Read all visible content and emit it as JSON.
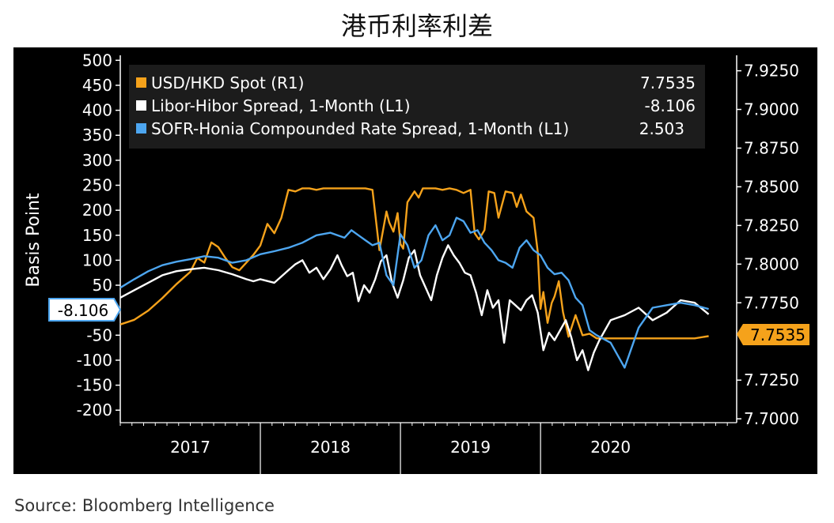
{
  "title": "港币利率利差",
  "source": "Source: Bloomberg Intelligence",
  "colors": {
    "background": "#000000",
    "usdhkd": "#f5a21b",
    "libor_hibor": "#ffffff",
    "sofr_honia": "#4da6f0",
    "legend_bg": "#1c1c1c"
  },
  "chart_data": {
    "type": "line",
    "title": "港币利率利差",
    "ylabel_left": "Basis Point",
    "left_axis": {
      "range": [
        -225,
        510
      ],
      "ticks": [
        500,
        450,
        400,
        350,
        300,
        250,
        200,
        150,
        100,
        50,
        -50,
        -100,
        -150,
        -200
      ],
      "tick_labels": [
        "500",
        "450",
        "400",
        "350",
        "300",
        "250",
        "200",
        "150",
        "100",
        "50",
        "-50",
        "-100",
        "-150",
        "-200"
      ]
    },
    "right_axis": {
      "range": [
        7.6975,
        7.935
      ],
      "ticks": [
        7.925,
        7.9,
        7.875,
        7.85,
        7.825,
        7.8,
        7.775,
        7.725,
        7.7
      ],
      "tick_labels": [
        "7.9250",
        "7.9000",
        "7.8750",
        "7.8500",
        "7.8250",
        "7.8000",
        "7.7750",
        "7.7250",
        "7.7000"
      ]
    },
    "x_axis": {
      "range": [
        2016.5,
        2020.9
      ],
      "year_labels": [
        "2017",
        "2018",
        "2019",
        "2020"
      ],
      "year_positions": [
        2017.0,
        2018.0,
        2019.0,
        2020.0
      ],
      "separators": [
        2017.5,
        2018.5,
        2019.5
      ]
    },
    "legend": {
      "position": "top-left",
      "entries": [
        {
          "name": "USD/HKD Spot (R1)",
          "value": "7.7535"
        },
        {
          "name": "Libor-Hibor Spread, 1-Month (L1)",
          "value": "-8.106"
        },
        {
          "name": "SOFR-Honia Compounded Rate Spread, 1-Month (L1)",
          "value": "2.503"
        }
      ]
    },
    "last_value_tags": {
      "left": "-8.106",
      "right": "7.7535"
    },
    "series": [
      {
        "name": "USD/HKD Spot (R1)",
        "axis": "right",
        "x": [
          2016.5,
          2016.6,
          2016.7,
          2016.8,
          2016.9,
          2017.0,
          2017.05,
          2017.1,
          2017.15,
          2017.2,
          2017.25,
          2017.3,
          2017.35,
          2017.4,
          2017.45,
          2017.5,
          2017.55,
          2017.6,
          2017.65,
          2017.7,
          2017.75,
          2017.8,
          2017.85,
          2017.9,
          2017.95,
          2018.0,
          2018.05,
          2018.1,
          2018.15,
          2018.2,
          2018.25,
          2018.3,
          2018.35,
          2018.4,
          2018.42,
          2018.45,
          2018.48,
          2018.5,
          2018.52,
          2018.55,
          2018.6,
          2018.63,
          2018.66,
          2018.7,
          2018.75,
          2018.8,
          2018.85,
          2018.9,
          2018.95,
          2019.0,
          2019.03,
          2019.06,
          2019.1,
          2019.13,
          2019.17,
          2019.2,
          2019.25,
          2019.3,
          2019.33,
          2019.36,
          2019.4,
          2019.45,
          2019.48,
          2019.5,
          2019.52,
          2019.55,
          2019.58,
          2019.6,
          2019.63,
          2019.66,
          2019.7,
          2019.75,
          2019.8,
          2019.85,
          2019.9,
          2020.0,
          2020.2,
          2020.4,
          2020.6,
          2020.7
        ],
        "values": [
          7.761,
          7.764,
          7.77,
          7.778,
          7.787,
          7.795,
          7.804,
          7.801,
          7.814,
          7.811,
          7.804,
          7.798,
          7.796,
          7.801,
          7.806,
          7.812,
          7.826,
          7.82,
          7.83,
          7.848,
          7.847,
          7.849,
          7.849,
          7.848,
          7.849,
          7.849,
          7.849,
          7.849,
          7.849,
          7.849,
          7.849,
          7.848,
          7.809,
          7.834,
          7.827,
          7.821,
          7.833,
          7.813,
          7.81,
          7.84,
          7.847,
          7.843,
          7.849,
          7.849,
          7.849,
          7.848,
          7.849,
          7.848,
          7.846,
          7.848,
          7.82,
          7.816,
          7.822,
          7.847,
          7.846,
          7.83,
          7.847,
          7.846,
          7.837,
          7.845,
          7.834,
          7.83,
          7.808,
          7.771,
          7.782,
          7.762,
          7.775,
          7.779,
          7.789,
          7.769,
          7.753,
          7.767,
          7.754,
          7.755,
          7.752,
          7.752,
          7.752,
          7.752,
          7.752,
          7.7535
        ]
      },
      {
        "name": "Libor-Hibor Spread, 1-Month (L1)",
        "axis": "left",
        "x": [
          2016.5,
          2016.6,
          2016.7,
          2016.8,
          2016.9,
          2017.0,
          2017.1,
          2017.2,
          2017.3,
          2017.4,
          2017.45,
          2017.5,
          2017.6,
          2017.7,
          2017.75,
          2017.8,
          2017.85,
          2017.9,
          2017.95,
          2018.0,
          2018.05,
          2018.08,
          2018.12,
          2018.16,
          2018.2,
          2018.24,
          2018.28,
          2018.32,
          2018.36,
          2018.4,
          2018.44,
          2018.48,
          2018.52,
          2018.56,
          2018.6,
          2018.64,
          2018.68,
          2018.72,
          2018.76,
          2018.8,
          2018.84,
          2018.88,
          2018.92,
          2018.96,
          2019.0,
          2019.04,
          2019.08,
          2019.12,
          2019.16,
          2019.2,
          2019.24,
          2019.28,
          2019.32,
          2019.36,
          2019.4,
          2019.44,
          2019.48,
          2019.52,
          2019.56,
          2019.6,
          2019.64,
          2019.68,
          2019.72,
          2019.76,
          2019.8,
          2019.84,
          2019.88,
          2019.92,
          2019.96,
          2020.0,
          2020.1,
          2020.2,
          2020.3,
          2020.4,
          2020.5,
          2020.6,
          2020.7
        ],
        "values": [
          25,
          40,
          55,
          70,
          78,
          82,
          85,
          80,
          72,
          62,
          58,
          62,
          55,
          80,
          92,
          100,
          75,
          85,
          62,
          82,
          110,
          90,
          68,
          75,
          18,
          50,
          35,
          62,
          98,
          110,
          55,
          25,
          60,
          105,
          120,
          70,
          45,
          20,
          70,
          105,
          130,
          110,
          95,
          75,
          70,
          35,
          -10,
          40,
          5,
          20,
          -65,
          20,
          10,
          0,
          20,
          30,
          -5,
          -80,
          -45,
          -60,
          -40,
          -20,
          -55,
          -100,
          -80,
          -120,
          -85,
          -60,
          -40,
          -20,
          -10,
          5,
          -20,
          -5,
          20,
          15,
          -8.106
        ]
      },
      {
        "name": "SOFR-Honia Compounded Rate Spread, 1-Month (L1)",
        "axis": "left",
        "x": [
          2016.5,
          2016.6,
          2016.7,
          2016.8,
          2016.9,
          2017.0,
          2017.1,
          2017.2,
          2017.3,
          2017.4,
          2017.5,
          2017.6,
          2017.7,
          2017.8,
          2017.9,
          2018.0,
          2018.05,
          2018.1,
          2018.15,
          2018.2,
          2018.25,
          2018.3,
          2018.35,
          2018.4,
          2018.45,
          2018.5,
          2018.55,
          2018.6,
          2018.65,
          2018.7,
          2018.75,
          2018.8,
          2018.85,
          2018.9,
          2018.95,
          2019.0,
          2019.05,
          2019.1,
          2019.15,
          2019.2,
          2019.25,
          2019.3,
          2019.35,
          2019.4,
          2019.45,
          2019.5,
          2019.55,
          2019.6,
          2019.65,
          2019.7,
          2019.75,
          2019.8,
          2019.85,
          2019.9,
          2020.0,
          2020.1,
          2020.2,
          2020.3,
          2020.4,
          2020.5,
          2020.6,
          2020.7
        ],
        "values": [
          45,
          62,
          78,
          90,
          97,
          102,
          108,
          105,
          95,
          100,
          112,
          118,
          125,
          135,
          150,
          155,
          150,
          145,
          160,
          150,
          140,
          130,
          135,
          70,
          50,
          152,
          130,
          85,
          100,
          150,
          170,
          140,
          150,
          185,
          178,
          155,
          160,
          135,
          120,
          100,
          95,
          85,
          125,
          140,
          120,
          110,
          85,
          72,
          75,
          60,
          25,
          10,
          -40,
          -50,
          -65,
          -115,
          -35,
          5,
          10,
          15,
          10,
          2.503
        ]
      }
    ]
  }
}
